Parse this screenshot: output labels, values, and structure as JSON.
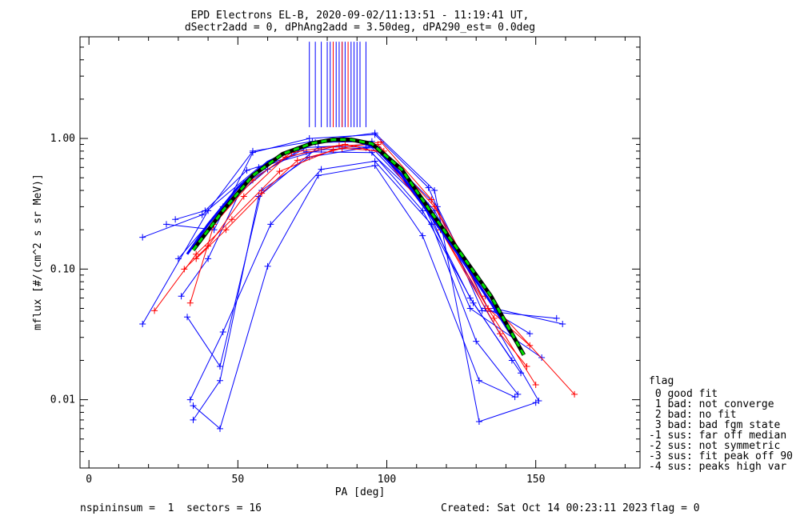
{
  "title_line1": "EPD Electrons EL-B, 2020-09-02/11:13:51 - 11:19:41 UT,",
  "title_line2": "dSectr2add = 0, dPhAng2add = 3.50deg, dPA290_est=   0.0deg",
  "chart_data": {
    "type": "line",
    "xlabel": "PA [deg]",
    "ylabel": "mflux [#/(cm^2 s sr MeV)]",
    "xlim": [
      -3,
      185
    ],
    "ylim": [
      0.003,
      6.0
    ],
    "yscale": "log",
    "x_ticks": [
      0,
      50,
      100,
      150
    ],
    "y_ticks": [
      {
        "value": 1.0,
        "label": "1.00"
      },
      {
        "value": 0.1,
        "label": "0.10"
      },
      {
        "value": 0.01,
        "label": "0.01"
      }
    ],
    "median_curve": {
      "x": [
        33,
        40,
        50,
        60,
        70,
        80,
        88,
        96,
        105,
        115,
        125,
        135,
        145
      ],
      "y": [
        0.13,
        0.22,
        0.42,
        0.66,
        0.85,
        0.97,
        0.98,
        0.86,
        0.52,
        0.25,
        0.12,
        0.055,
        0.024
      ]
    },
    "fit_curve": {
      "x": [
        35,
        45,
        55,
        65,
        75,
        82,
        88,
        95,
        105,
        115,
        125,
        135,
        146
      ],
      "y": [
        0.14,
        0.28,
        0.52,
        0.76,
        0.92,
        0.98,
        0.98,
        0.91,
        0.58,
        0.27,
        0.13,
        0.062,
        0.022
      ]
    },
    "blue_series": [
      {
        "x": [
          18,
          40,
          55,
          75,
          96,
          116,
          131,
          150
        ],
        "y": [
          0.038,
          0.28,
          0.8,
          0.95,
          1.1,
          0.4,
          0.0068,
          0.0095
        ]
      },
      {
        "x": [
          18,
          38,
          57,
          78,
          97,
          117,
          134,
          148
        ],
        "y": [
          0.175,
          0.26,
          0.6,
          0.82,
          0.85,
          0.3,
          0.05,
          0.032
        ]
      },
      {
        "x": [
          26,
          42,
          55,
          74,
          96,
          114,
          132,
          157
        ],
        "y": [
          0.22,
          0.2,
          0.78,
          1.0,
          1.07,
          0.42,
          0.048,
          0.042
        ]
      },
      {
        "x": [
          30,
          45,
          60,
          76,
          95,
          113,
          128,
          152
        ],
        "y": [
          0.12,
          0.3,
          0.58,
          0.93,
          0.95,
          0.32,
          0.05,
          0.021
        ]
      },
      {
        "x": [
          34,
          45,
          61,
          78,
          96,
          115,
          130,
          144
        ],
        "y": [
          0.01,
          0.033,
          0.22,
          0.58,
          0.67,
          0.22,
          0.028,
          0.011
        ]
      },
      {
        "x": [
          35,
          44,
          60,
          77,
          96,
          112,
          131,
          143
        ],
        "y": [
          0.009,
          0.006,
          0.105,
          0.52,
          0.62,
          0.18,
          0.014,
          0.0105
        ]
      },
      {
        "x": [
          31,
          40,
          52,
          72,
          94,
          111,
          128,
          142
        ],
        "y": [
          0.062,
          0.12,
          0.45,
          0.85,
          0.9,
          0.35,
          0.06,
          0.02
        ]
      },
      {
        "x": [
          29,
          39,
          53,
          73,
          95,
          112,
          129,
          145
        ],
        "y": [
          0.24,
          0.28,
          0.57,
          0.79,
          0.78,
          0.28,
          0.055,
          0.016
        ]
      },
      {
        "x": [
          33,
          44,
          58,
          74,
          93,
          114,
          136,
          159
        ],
        "y": [
          0.043,
          0.018,
          0.4,
          0.72,
          0.85,
          0.3,
          0.05,
          0.038
        ]
      },
      {
        "x": [
          35,
          44,
          57,
          77,
          97,
          116,
          133,
          151
        ],
        "y": [
          0.007,
          0.014,
          0.36,
          0.86,
          0.86,
          0.28,
          0.05,
          0.0098
        ]
      }
    ],
    "red_series": [
      {
        "x": [
          22,
          36,
          48,
          64,
          82,
          98,
          115,
          133,
          163
        ],
        "y": [
          0.048,
          0.13,
          0.24,
          0.56,
          0.82,
          0.94,
          0.34,
          0.062,
          0.011
        ]
      },
      {
        "x": [
          32,
          40,
          52,
          66,
          84,
          97,
          116,
          134,
          148
        ],
        "y": [
          0.1,
          0.15,
          0.36,
          0.72,
          0.88,
          0.9,
          0.3,
          0.05,
          0.026
        ]
      },
      {
        "x": [
          34,
          42,
          55,
          68,
          86,
          98,
          117,
          136,
          150
        ],
        "y": [
          0.055,
          0.22,
          0.48,
          0.78,
          0.9,
          0.78,
          0.22,
          0.042,
          0.013
        ]
      },
      {
        "x": [
          36,
          46,
          58,
          70,
          85,
          99,
          118,
          138,
          147
        ],
        "y": [
          0.12,
          0.2,
          0.38,
          0.68,
          0.84,
          0.8,
          0.2,
          0.032,
          0.018
        ]
      }
    ],
    "median_ticks_red": [
      82,
      85,
      87
    ],
    "median_ticks_blue": [
      74,
      76,
      78,
      80,
      81,
      82,
      83,
      84,
      85,
      86,
      88,
      89,
      90,
      91,
      93
    ]
  },
  "legend": {
    "title": "flag",
    "items": [
      " 0 good fit",
      " 1 bad: not converge",
      " 2 bad: no fit",
      " 3 bad: bad fgm state",
      "-1 sus: far off median",
      "-2 sus: not symmetric",
      "-3 sus: fit peak off 90",
      "-4 sus: peaks high var"
    ]
  },
  "footer": {
    "left": "nspininsum =  1  sectors = 16",
    "created": "Created: Sat Oct 14 00:23:11 2023",
    "flag": "flag = 0"
  },
  "colors": {
    "blue": "#0000ff",
    "red": "#ff0000",
    "fit": "#000000",
    "median": "#00dd00"
  }
}
